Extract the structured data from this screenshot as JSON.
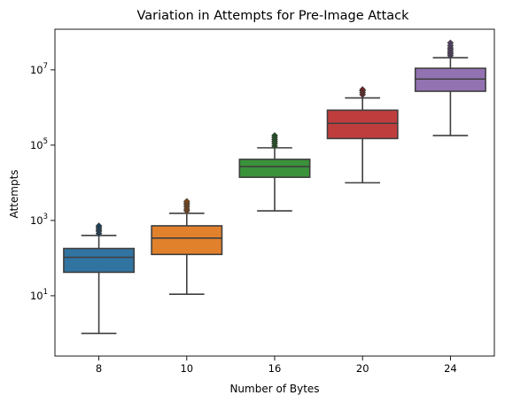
{
  "chart_data": {
    "type": "box",
    "title": "Variation in Attempts for Pre-Image Attack",
    "xlabel": "Number of Bytes",
    "ylabel": "Attempts",
    "yscale": "log",
    "ylim": [
      0.25,
      120000000
    ],
    "y_ticks": [
      {
        "value": 10,
        "base": "10",
        "exp": "1"
      },
      {
        "value": 1000,
        "base": "10",
        "exp": "3"
      },
      {
        "value": 100000,
        "base": "10",
        "exp": "5"
      },
      {
        "value": 10000000,
        "base": "10",
        "exp": "7"
      }
    ],
    "categories": [
      "8",
      "10",
      "16",
      "20",
      "24"
    ],
    "boxes": [
      {
        "category": "8",
        "color": "#3274a1",
        "whisker_low": 1,
        "q1": 42,
        "median": 105,
        "q3": 180,
        "whisker_high": 400,
        "outliers": [
          450,
          520,
          580,
          650,
          720
        ]
      },
      {
        "category": "10",
        "color": "#e1812c",
        "whisker_low": 11,
        "q1": 125,
        "median": 340,
        "q3": 720,
        "whisker_high": 1550,
        "outliers": [
          1800,
          2000,
          2300,
          2600,
          2900,
          3200
        ]
      },
      {
        "category": "16",
        "color": "#3a923a",
        "whisker_low": 1800,
        "q1": 14000,
        "median": 27000,
        "q3": 42000,
        "whisker_high": 85000,
        "outliers": [
          95000,
          110000,
          125000,
          140000,
          160000,
          180000
        ]
      },
      {
        "category": "20",
        "color": "#c03d3e",
        "whisker_low": 10000,
        "q1": 150000,
        "median": 380000,
        "q3": 850000,
        "whisker_high": 1800000,
        "outliers": [
          2200000,
          2500000,
          2800000,
          3000000
        ]
      },
      {
        "category": "24",
        "color": "#9372b2",
        "whisker_low": 180000,
        "q1": 2700000,
        "median": 5700000,
        "q3": 11000000,
        "whisker_high": 21000000,
        "outliers": [
          24000000,
          27000000,
          30000000,
          34000000,
          38000000,
          44000000,
          52000000
        ]
      }
    ]
  }
}
